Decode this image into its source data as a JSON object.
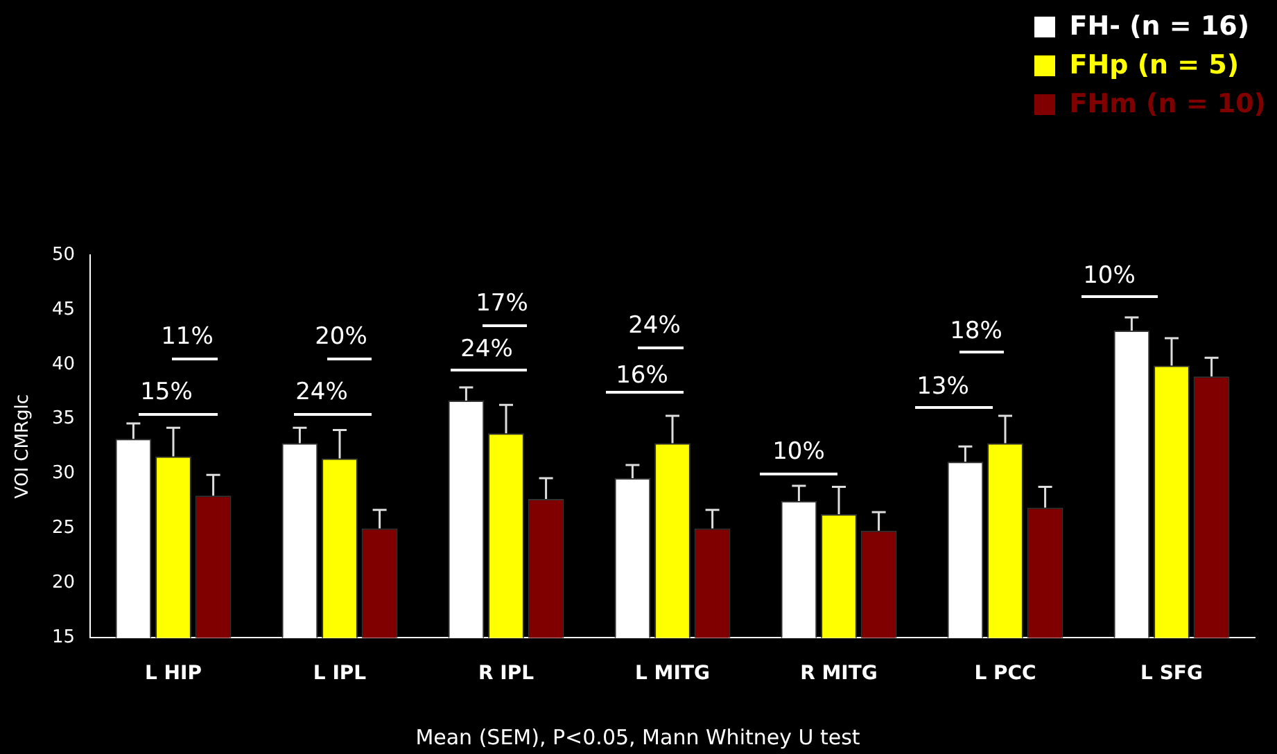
{
  "chart_data": {
    "type": "bar",
    "ylabel": "VOI CMRglc",
    "categories": [
      "L HIP",
      "L IPL",
      "R IPL",
      "L MITG",
      "R MITG",
      "L PCC",
      "L SFG"
    ],
    "series": [
      {
        "name": "FH- (n = 16)",
        "color": "#ffffff",
        "values": [
          33.2,
          32.8,
          36.7,
          29.6,
          27.5,
          31.1,
          43.1
        ],
        "errors": [
          [
            33.2,
            34.6
          ],
          [
            32.8,
            34.2
          ],
          [
            36.7,
            37.9
          ],
          [
            29.6,
            30.8
          ],
          [
            27.5,
            28.9
          ],
          [
            31.1,
            32.5
          ],
          [
            43.1,
            44.3
          ]
        ]
      },
      {
        "name": "FHp (n = 5)",
        "color": "#ffff00",
        "values": [
          31.6,
          31.4,
          33.7,
          32.8,
          26.3,
          32.8,
          39.9
        ],
        "errors": [
          [
            31.6,
            34.2
          ],
          [
            31.4,
            34.0
          ],
          [
            33.7,
            36.3
          ],
          [
            32.8,
            35.3
          ],
          [
            26.3,
            28.8
          ],
          [
            32.8,
            35.3
          ],
          [
            39.9,
            42.4
          ]
        ]
      },
      {
        "name": "FHm (n = 10)",
        "color": "#800000",
        "values": [
          28.0,
          25.0,
          27.7,
          25.0,
          24.8,
          26.9,
          38.9
        ],
        "errors": [
          [
            28.0,
            29.9
          ],
          [
            25.0,
            26.7
          ],
          [
            27.7,
            29.6
          ],
          [
            25.0,
            26.7
          ],
          [
            24.8,
            26.5
          ],
          [
            26.9,
            28.8
          ],
          [
            38.9,
            40.6
          ]
        ]
      }
    ],
    "ylim": [
      15,
      50
    ],
    "yticks": [
      15,
      20,
      25,
      30,
      35,
      40,
      45,
      50
    ],
    "grid": false,
    "legend": "top right",
    "annotations": [
      "15%",
      "11%",
      "24%",
      "20%",
      "24%",
      "17%",
      "16%",
      "24%",
      "10%",
      "13%",
      "18%",
      "10%",
      "Mean (SEM), P<0.05, Mann Whitney U test"
    ]
  }
}
